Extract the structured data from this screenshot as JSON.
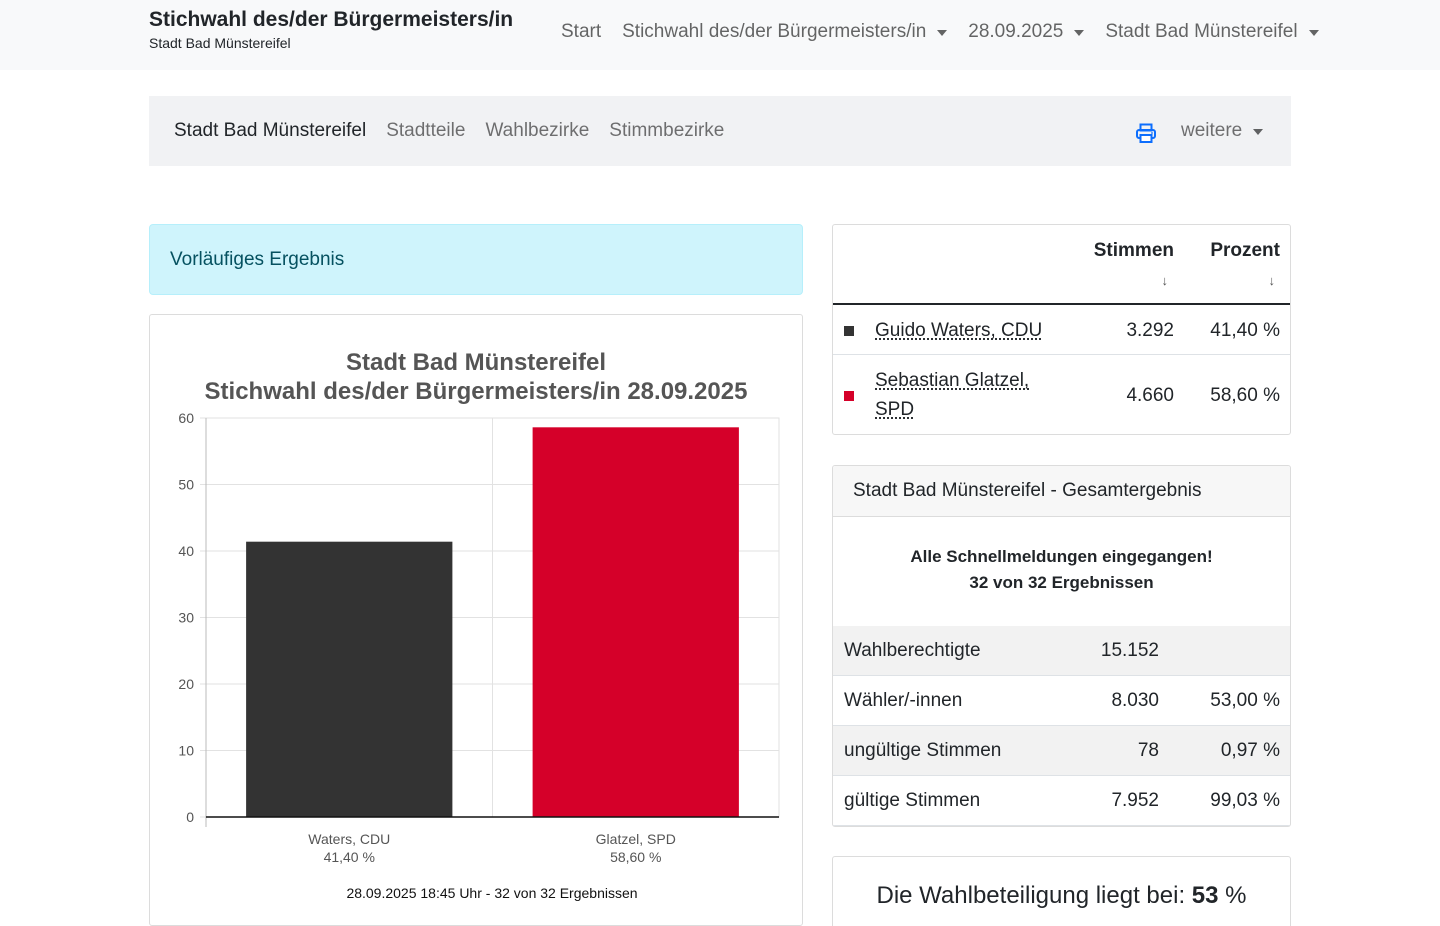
{
  "navbar": {
    "brand_title": "Stichwahl des/der Bürgermeisters/in",
    "brand_subtitle": "Stadt Bad Münstereifel",
    "items": [
      {
        "label": "Start"
      },
      {
        "label": "Stichwahl des/der Bürgermeisters/in"
      },
      {
        "label": "28.09.2025"
      },
      {
        "label": "Stadt Bad Münstereifel"
      }
    ]
  },
  "subnav": {
    "items": [
      {
        "label": "Stadt Bad Münstereifel",
        "active": true
      },
      {
        "label": "Stadtteile"
      },
      {
        "label": "Wahlbezirke"
      },
      {
        "label": "Stimmbezirke"
      }
    ],
    "print_icon": "printer-icon",
    "more_label": "weitere"
  },
  "alert": {
    "text": "Vorläufiges Ergebnis"
  },
  "results": {
    "headers": {
      "votes": "Stimmen",
      "percent": "Prozent"
    },
    "sort_icon": "↓",
    "rows": [
      {
        "name": "Guido Waters, CDU",
        "color": "#333333",
        "votes": "3.292",
        "percent": "41,40 %"
      },
      {
        "name": "Sebastian Glatzel, SPD",
        "color": "#d50029",
        "votes": "4.660",
        "percent": "58,60 %"
      }
    ]
  },
  "total": {
    "header": "Stadt Bad Münstereifel - Gesamtergebnis",
    "message_line1": "Alle Schnellmeldungen eingegangen!",
    "message_line2": "32 von 32 Ergebnissen",
    "rows": [
      {
        "label": "Wahlberechtigte",
        "value": "15.152",
        "percent": ""
      },
      {
        "label": "Wähler/-innen",
        "value": "8.030",
        "percent": "53,00 %"
      },
      {
        "label": "ungültige Stimmen",
        "value": "78",
        "percent": "0,97 %"
      },
      {
        "label": "gültige Stimmen",
        "value": "7.952",
        "percent": "99,03 %"
      }
    ]
  },
  "turnout": {
    "prefix": "Die Wahlbeteiligung liegt bei:",
    "value": "53",
    "unit": "%"
  },
  "chart_data": {
    "type": "bar",
    "title": "Stadt Bad Münstereifel",
    "subtitle": "Stichwahl des/der Bürgermeisters/in 28.09.2025",
    "categories": [
      "Waters, CDU",
      "Glatzel, SPD"
    ],
    "category_sublabels": [
      "41,40 %",
      "58,60 %"
    ],
    "values": [
      41.4,
      58.6
    ],
    "colors": [
      "#333333",
      "#d50029"
    ],
    "ylim": [
      0,
      60
    ],
    "yticks": [
      0,
      10,
      20,
      30,
      40,
      50,
      60
    ],
    "grid": true,
    "footer": "28.09.2025 18:45 Uhr - 32 von 32 Ergebnissen"
  }
}
